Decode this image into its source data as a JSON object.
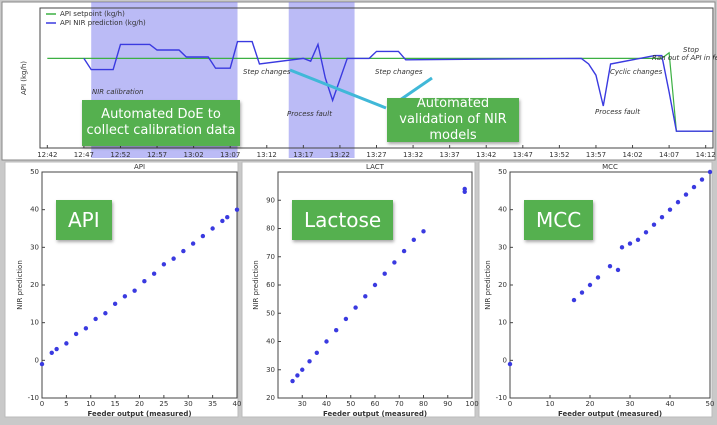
{
  "chart_data": [
    {
      "type": "line",
      "ylabel": "API (kg/h)",
      "ylim": [
        0,
        5
      ],
      "xlim": [
        761,
        853
      ],
      "xticks": [
        {
          "value": 762,
          "label": "12:42"
        },
        {
          "value": 767,
          "label": "12:47"
        },
        {
          "value": 772,
          "label": "12:52"
        },
        {
          "value": 777,
          "label": "12:57"
        },
        {
          "value": 782,
          "label": "13:02"
        },
        {
          "value": 787,
          "label": "13:07"
        },
        {
          "value": 792,
          "label": "13:12"
        },
        {
          "value": 797,
          "label": "13:17"
        },
        {
          "value": 802,
          "label": "13:22"
        },
        {
          "value": 807,
          "label": "13:27"
        },
        {
          "value": 812,
          "label": "13:32"
        },
        {
          "value": 817,
          "label": "13:37"
        },
        {
          "value": 822,
          "label": "13:42"
        },
        {
          "value": 827,
          "label": "13:47"
        },
        {
          "value": 832,
          "label": "13:52"
        },
        {
          "value": 837,
          "label": "13:57"
        },
        {
          "value": 842,
          "label": "14:02"
        },
        {
          "value": 847,
          "label": "14:07"
        },
        {
          "value": 852,
          "label": "14:12"
        }
      ],
      "x": [
        762,
        767,
        768,
        771,
        772,
        776,
        777,
        780,
        781,
        784,
        785,
        787,
        788,
        790,
        791,
        797,
        798,
        799,
        800,
        801,
        803,
        806,
        807,
        810,
        811,
        835,
        836,
        837,
        838,
        839,
        843,
        845,
        846,
        847,
        848,
        853
      ],
      "series": [
        {
          "name": "API setpoint (kg/h)",
          "color": "#3cb043",
          "values": [
            3.2,
            3.2,
            3.2,
            3.2,
            3.2,
            3.2,
            3.2,
            3.2,
            3.2,
            3.2,
            3.2,
            3.2,
            3.2,
            3.2,
            3.2,
            3.2,
            3.2,
            3.2,
            3.2,
            3.2,
            3.2,
            3.2,
            3.2,
            3.2,
            3.2,
            3.2,
            3.2,
            3.2,
            3.2,
            3.2,
            3.2,
            3.2,
            3.2,
            3.4,
            0.6,
            0.6
          ]
        },
        {
          "name": "API NIR prediction (kg/h)",
          "color": "#3a3ae0",
          "values": [
            null,
            3.2,
            2.8,
            2.8,
            3.7,
            3.7,
            3.5,
            3.5,
            3.25,
            3.25,
            2.85,
            2.85,
            3.8,
            3.8,
            3.0,
            3.2,
            3.1,
            3.7,
            2.5,
            1.7,
            3.2,
            3.2,
            3.45,
            3.45,
            3.15,
            3.2,
            3.0,
            2.6,
            1.5,
            3.0,
            3.2,
            3.3,
            3.3,
            2.0,
            0.6,
            0.6
          ]
        }
      ],
      "highlight_spans": [
        [
          768,
          788
        ],
        [
          795,
          804
        ]
      ],
      "highlight_color": "#7878ee",
      "annotations": [
        {
          "text": "NIR calibration",
          "color": "#2a2ad0"
        },
        {
          "text": "Step changes",
          "color": "#2c9c2c"
        },
        {
          "text": "Process fault",
          "color": "#e02020"
        },
        {
          "text": "Step changes",
          "color": "#2c9c2c"
        },
        {
          "text": "Cyclic changes",
          "color": "#2c9c2c"
        },
        {
          "text": "Process fault",
          "color": "#e02020"
        },
        {
          "text": "Stop",
          "color": "#2c9c2c"
        },
        {
          "text": "Ran out of API in feeder",
          "color": "#e02020"
        }
      ],
      "callouts": [
        "Automated DoE to collect calibration data",
        "Automated validation of NIR models"
      ]
    },
    {
      "type": "scatter",
      "title": "API",
      "callout": "API",
      "xlabel": "Feeder output (measured)",
      "ylabel": "NIR prediction",
      "color": "#3a3ae0",
      "xlim": [
        0,
        40
      ],
      "ylim": [
        -10,
        50
      ],
      "xticks": [
        0,
        5,
        10,
        15,
        20,
        25,
        30,
        35,
        40
      ],
      "yticks": [
        -10,
        0,
        10,
        20,
        30,
        40,
        50
      ],
      "x": [
        0,
        2,
        3,
        5,
        7,
        9,
        11,
        13,
        15,
        17,
        19,
        21,
        23,
        25,
        27,
        29,
        31,
        33,
        35,
        37,
        38,
        40
      ],
      "values": [
        -1,
        2,
        3,
        4.5,
        7,
        8.5,
        11,
        12.5,
        15,
        17,
        18.5,
        21,
        23,
        25.5,
        27,
        29,
        31,
        33,
        35,
        37,
        38,
        40
      ]
    },
    {
      "type": "scatter",
      "title": "LACT",
      "callout": "Lactose",
      "xlabel": "Feeder output (measured)",
      "ylabel": "NIR prediction",
      "color": "#3a3ae0",
      "xlim": [
        20,
        100
      ],
      "ylim": [
        20,
        100
      ],
      "xticks": [
        30,
        40,
        50,
        60,
        70,
        80,
        90,
        100
      ],
      "yticks": [
        20,
        30,
        40,
        50,
        60,
        70,
        80,
        90
      ],
      "x": [
        26,
        28,
        30,
        33,
        36,
        40,
        44,
        48,
        52,
        56,
        60,
        64,
        68,
        72,
        76,
        80,
        97,
        97
      ],
      "values": [
        26,
        28,
        30,
        33,
        36,
        40,
        44,
        48,
        52,
        56,
        60,
        64,
        68,
        72,
        76,
        79,
        93,
        94
      ]
    },
    {
      "type": "scatter",
      "title": "MCC",
      "callout": "MCC",
      "xlabel": "Feeder output (measured)",
      "ylabel": "NIR prediction",
      "color": "#3a3ae0",
      "xlim": [
        0,
        50
      ],
      "ylim": [
        -10,
        50
      ],
      "xticks": [
        0,
        10,
        20,
        30,
        40,
        50
      ],
      "yticks": [
        -10,
        0,
        10,
        20,
        30,
        40,
        50
      ],
      "x": [
        0,
        16,
        18,
        20,
        22,
        25,
        27,
        28,
        30,
        32,
        34,
        36,
        38,
        40,
        42,
        44,
        46,
        48,
        50
      ],
      "values": [
        -1,
        16,
        18,
        20,
        22,
        25,
        24,
        30,
        31,
        32,
        34,
        36,
        38,
        40,
        42,
        44,
        46,
        48,
        50
      ]
    }
  ]
}
